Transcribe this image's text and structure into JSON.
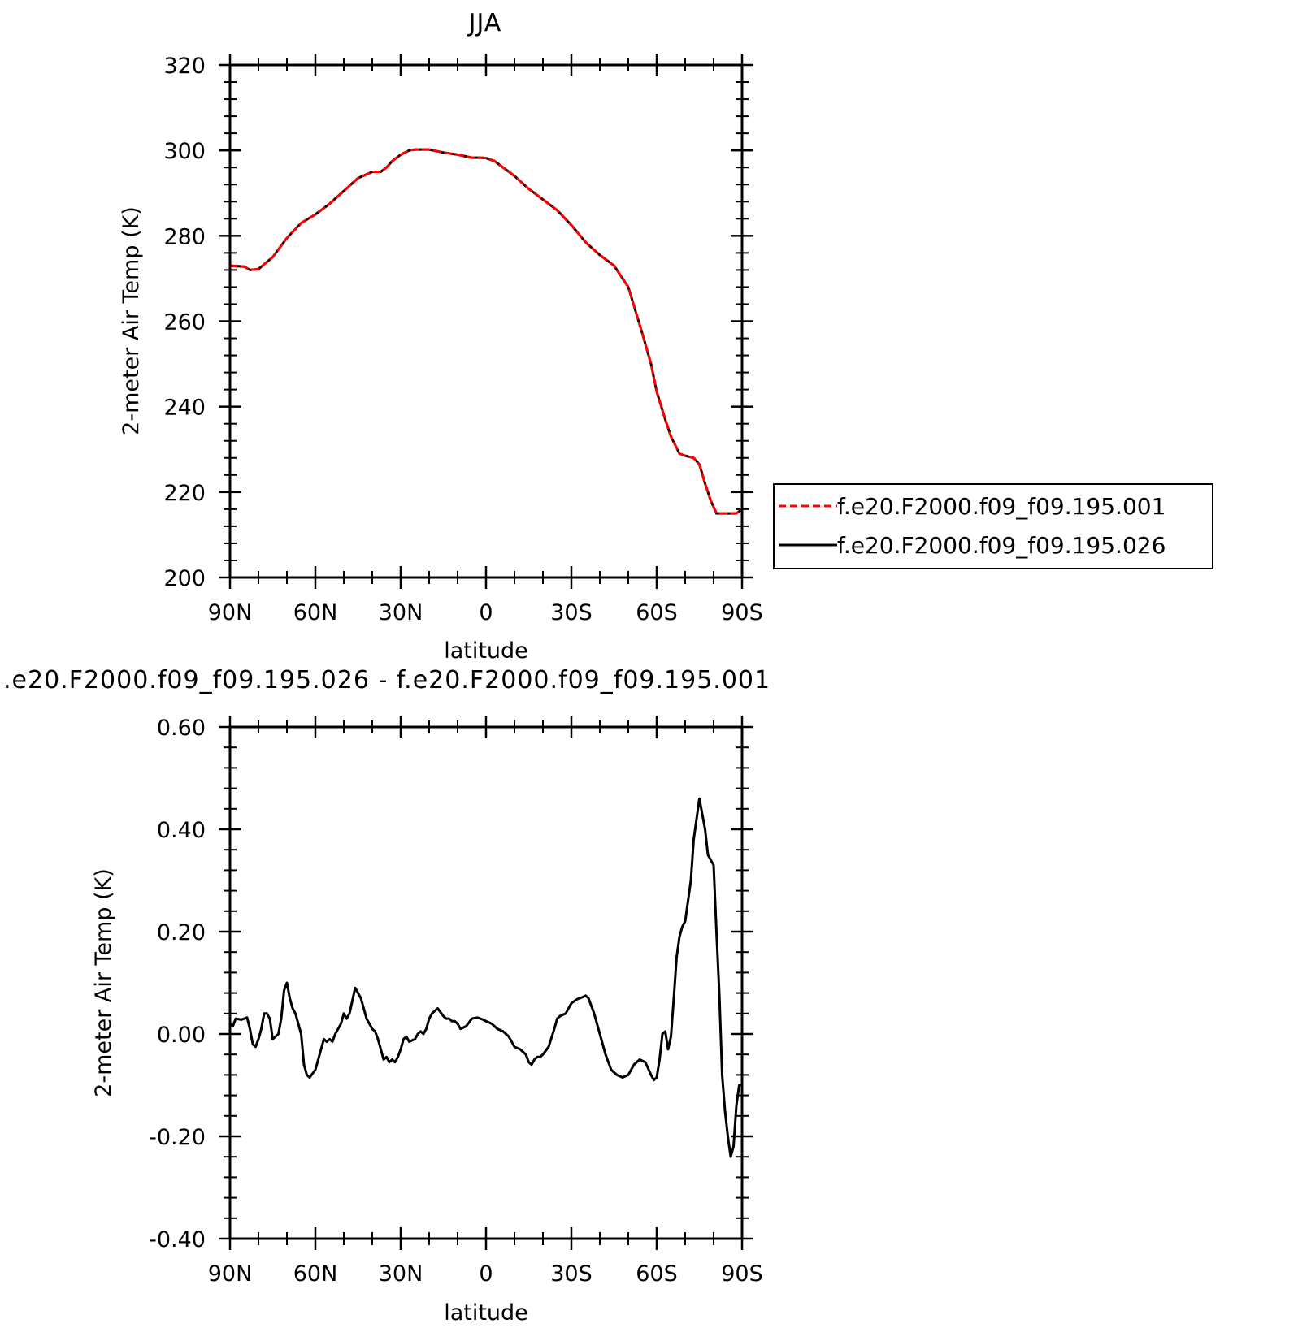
{
  "chart_data": [
    {
      "type": "line",
      "title": "JJA",
      "xlabel": "latitude",
      "ylabel": "2-meter Air Temp (K)",
      "xlim": [
        90,
        -90
      ],
      "ylim": [
        200,
        320
      ],
      "x_tick_values": [
        90,
        60,
        30,
        0,
        -30,
        -60,
        -90
      ],
      "x_tick_labels": [
        "90N",
        "60N",
        "30N",
        "0",
        "30S",
        "60S",
        "90S"
      ],
      "y_tick_values": [
        200,
        220,
        240,
        260,
        280,
        300,
        320
      ],
      "y_tick_labels": [
        "200",
        "220",
        "240",
        "260",
        "280",
        "300",
        "320"
      ],
      "legend_position": "right",
      "series": [
        {
          "name": "f.e20.F2000.f09_f09.195.001",
          "color": "#ff0000",
          "style": "dashed",
          "x": [
            90,
            85,
            83,
            80,
            75,
            70,
            65,
            60,
            55,
            50,
            45,
            40,
            37,
            35,
            33,
            30,
            27,
            25,
            20,
            15,
            10,
            5,
            2,
            0,
            -3,
            -5,
            -10,
            -15,
            -20,
            -25,
            -30,
            -35,
            -40,
            -45,
            -50,
            -55,
            -58,
            -60,
            -63,
            -65,
            -68,
            -70,
            -73,
            -75,
            -77,
            -79,
            -81,
            -83,
            -85,
            -87,
            -88,
            -90
          ],
          "values": [
            273,
            272.8,
            272,
            272.2,
            275,
            279.5,
            283,
            285,
            287.5,
            290.5,
            293.5,
            295,
            295,
            296,
            297.5,
            299,
            300,
            300.2,
            300.2,
            299.5,
            299,
            298.3,
            298.3,
            298.2,
            297.5,
            296.5,
            294,
            291,
            288.5,
            286,
            282.5,
            278.5,
            275.5,
            273,
            268,
            257,
            250,
            243.5,
            237,
            233,
            229,
            228.5,
            228,
            226.5,
            222,
            218,
            215,
            215,
            215,
            215,
            215,
            216
          ]
        },
        {
          "name": "f.e20.F2000.f09_f09.195.026",
          "color": "#000000",
          "style": "solid",
          "x": [
            90,
            85,
            83,
            80,
            75,
            70,
            65,
            60,
            55,
            50,
            45,
            40,
            37,
            35,
            33,
            30,
            27,
            25,
            20,
            15,
            10,
            5,
            2,
            0,
            -3,
            -5,
            -10,
            -15,
            -20,
            -25,
            -30,
            -35,
            -40,
            -45,
            -50,
            -55,
            -58,
            -60,
            -63,
            -65,
            -68,
            -70,
            -73,
            -75,
            -77,
            -79,
            -81,
            -83,
            -85,
            -87,
            -88,
            -90
          ],
          "values": [
            273,
            272.8,
            272,
            272.2,
            275,
            279.5,
            283,
            285,
            287.5,
            290.5,
            293.5,
            295,
            295,
            296,
            297.5,
            299,
            300,
            300.2,
            300.2,
            299.5,
            299,
            298.3,
            298.3,
            298.2,
            297.5,
            296.5,
            294,
            291,
            288.5,
            286,
            282.5,
            278.5,
            275.5,
            273,
            268,
            257,
            250,
            243.5,
            237,
            233,
            229,
            228.5,
            228,
            226.5,
            222,
            218,
            215,
            215,
            215,
            215,
            215,
            216
          ]
        }
      ]
    },
    {
      "type": "line",
      "title": ".e20.F2000.f09_f09.195.026 - f.e20.F2000.f09_f09.195.001",
      "xlabel": "latitude",
      "ylabel": "2-meter Air Temp (K)",
      "xlim": [
        90,
        -90
      ],
      "ylim": [
        -0.4,
        0.6
      ],
      "x_tick_values": [
        90,
        60,
        30,
        0,
        -30,
        -60,
        -90
      ],
      "x_tick_labels": [
        "90N",
        "60N",
        "30N",
        "0",
        "30S",
        "60S",
        "90S"
      ],
      "y_tick_values": [
        -0.4,
        -0.2,
        0,
        0.2,
        0.4,
        0.6
      ],
      "y_tick_labels": [
        "-0.40",
        "-0.20",
        "0.00",
        "0.20",
        "0.40",
        "0.60"
      ],
      "series": [
        {
          "color": "#000000",
          "style": "solid",
          "x": [
            90,
            89,
            88,
            86,
            84,
            83,
            82,
            81,
            80,
            79,
            78,
            77,
            76,
            75,
            73,
            72,
            71,
            70,
            69,
            68,
            67,
            66,
            65,
            64,
            63,
            62,
            60,
            59,
            58,
            57,
            56,
            55,
            54,
            53,
            52,
            51,
            50,
            49,
            48,
            46,
            44,
            42,
            40,
            39,
            38,
            37,
            36,
            35,
            34,
            33,
            32,
            31,
            30,
            29,
            28,
            27,
            25,
            24,
            23,
            22,
            21,
            20,
            19,
            17,
            15,
            14,
            13,
            12,
            11,
            10,
            9,
            7,
            5,
            3,
            1,
            0,
            -2,
            -4,
            -6,
            -8,
            -10,
            -12,
            -14,
            -15,
            -16,
            -17,
            -18,
            -19,
            -20,
            -22,
            -24,
            -25,
            -26,
            -28,
            -30,
            -32,
            -34,
            -35,
            -36,
            -38,
            -40,
            -42,
            -44,
            -46,
            -48,
            -50,
            -52,
            -54,
            -56,
            -58,
            -59,
            -60,
            -61,
            -62,
            -63,
            -64,
            -65,
            -66,
            -67,
            -68,
            -69,
            -70,
            -71,
            -72,
            -73,
            -74,
            -75,
            -76,
            -77,
            -78,
            -79,
            -80,
            -81,
            -82,
            -83,
            -84,
            -85,
            -86,
            -87,
            -88,
            -89,
            -90
          ],
          "values": [
            0.02,
            0.015,
            0.03,
            0.028,
            0.032,
            0.01,
            -0.02,
            -0.025,
            -0.01,
            0.01,
            0.04,
            0.04,
            0.03,
            -0.01,
            0.0,
            0.03,
            0.085,
            0.1,
            0.07,
            0.05,
            0.04,
            0.02,
            0.0,
            -0.06,
            -0.08,
            -0.085,
            -0.07,
            -0.05,
            -0.03,
            -0.01,
            -0.015,
            -0.01,
            -0.015,
            0.0,
            0.01,
            0.02,
            0.04,
            0.03,
            0.04,
            0.09,
            0.07,
            0.03,
            0.01,
            0.005,
            -0.01,
            -0.03,
            -0.05,
            -0.045,
            -0.055,
            -0.05,
            -0.055,
            -0.045,
            -0.03,
            -0.01,
            -0.005,
            -0.015,
            -0.01,
            0.0,
            0.005,
            0.0,
            0.01,
            0.03,
            0.04,
            0.05,
            0.035,
            0.03,
            0.03,
            0.025,
            0.025,
            0.02,
            0.01,
            0.015,
            0.03,
            0.032,
            0.028,
            0.025,
            0.02,
            0.01,
            0.005,
            -0.005,
            -0.025,
            -0.03,
            -0.04,
            -0.055,
            -0.06,
            -0.05,
            -0.045,
            -0.045,
            -0.04,
            -0.025,
            0.01,
            0.03,
            0.035,
            0.04,
            0.06,
            0.068,
            0.072,
            0.075,
            0.07,
            0.04,
            0.0,
            -0.04,
            -0.07,
            -0.08,
            -0.085,
            -0.08,
            -0.06,
            -0.05,
            -0.055,
            -0.08,
            -0.09,
            -0.085,
            -0.05,
            0.0,
            0.005,
            -0.03,
            -0.005,
            0.07,
            0.15,
            0.19,
            0.21,
            0.22,
            0.26,
            0.3,
            0.38,
            0.42,
            0.46,
            0.43,
            0.4,
            0.35,
            0.34,
            0.33,
            0.2,
            0.08,
            -0.08,
            -0.15,
            -0.2,
            -0.24,
            -0.22,
            -0.14,
            -0.1,
            -0.1
          ]
        }
      ]
    }
  ]
}
